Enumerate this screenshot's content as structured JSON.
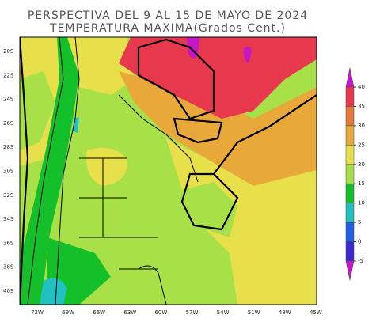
{
  "header": {
    "title": "PERSPECTIVA DEL 9 AL 15 DE MAYO DE 2024",
    "subtitle": "TEMPERATURA MAXIMA(Grados Cent.)"
  },
  "map": {
    "lat_labels": [
      "20S",
      "22S",
      "24S",
      "26S",
      "28S",
      "30S",
      "32S",
      "34S",
      "36S",
      "38S",
      "40S"
    ],
    "lon_labels": [
      "72W",
      "69W",
      "66W",
      "63W",
      "60W",
      "57W",
      "54W",
      "51W",
      "48W",
      "45W"
    ]
  },
  "legend": {
    "ticks": [
      40,
      35,
      30,
      25,
      20,
      15,
      10,
      5,
      0,
      -5
    ],
    "colors": [
      "#c418c8",
      "#e8384e",
      "#e8783a",
      "#e8a83a",
      "#e8e04a",
      "#a8e048",
      "#14c02a",
      "#20c0c0",
      "#2060e8",
      "#3a2ad0",
      "#c418c8"
    ]
  }
}
